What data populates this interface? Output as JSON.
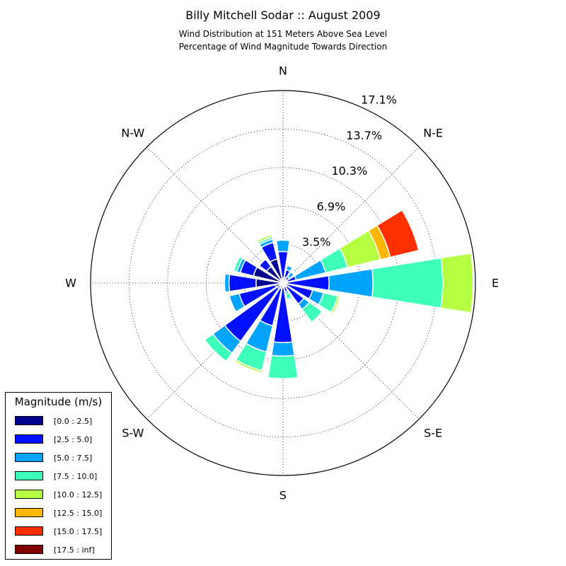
{
  "title": "Billy Mitchell Sodar :: August 2009",
  "subtitle_lines": [
    "Wind Distribution at 151 Meters Above Sea Level",
    "Percentage of Wind Magnitude Towards Direction"
  ],
  "legend": {
    "title": "Magnitude (m/s)",
    "entries": [
      {
        "label": "[0.0 : 2.5]",
        "color": "#00008f"
      },
      {
        "label": "[2.5 : 5.0]",
        "color": "#0010ff"
      },
      {
        "label": "[5.0 : 7.5]",
        "color": "#00a4ff"
      },
      {
        "label": "[7.5 : 10.0]",
        "color": "#3dffb9"
      },
      {
        "label": "[10.0 : 12.5]",
        "color": "#b4ff42"
      },
      {
        "label": "[12.5 : 15.0]",
        "color": "#ffb700"
      },
      {
        "label": "[15.0 : 17.5]",
        "color": "#ff3000"
      },
      {
        "label": "[17.5 : inf]",
        "color": "#800000"
      }
    ]
  },
  "chart_data": {
    "type": "polar-stacked-bar",
    "title": "Billy Mitchell Sodar :: August 2009",
    "subtitle": "Wind Distribution at 151 Meters Above Sea Level / Percentage of Wind Magnitude Towards Direction",
    "direction_labels": [
      "N",
      "N-E",
      "E",
      "S-E",
      "S",
      "S-W",
      "W",
      "N-W"
    ],
    "radial_tick_labels": [
      "3.5%",
      "6.9%",
      "10.3%",
      "13.7%",
      "17.1%"
    ],
    "radial_ticks": [
      3.42,
      6.84,
      10.26,
      13.68,
      17.1
    ],
    "rmax": 17.1,
    "unit": "%",
    "bin_width_deg": 22.5,
    "bins": [
      "[0.0 : 2.5]",
      "[2.5 : 5.0]",
      "[5.0 : 7.5]",
      "[7.5 : 10.0]",
      "[10.0 : 12.5]",
      "[12.5 : 15.0]",
      "[15.0 : 17.5]",
      "[17.5 : inf]"
    ],
    "directions_deg": [
      0,
      22.5,
      45,
      67.5,
      90,
      112.5,
      135,
      157.5,
      180,
      202.5,
      225,
      247.5,
      270,
      292.5,
      315,
      337.5
    ],
    "cumulative": [
      [
        0.4,
        2.8,
        3.8,
        3.8,
        3.8,
        3.8,
        3.8,
        3.8
      ],
      [
        0.5,
        1.2,
        1.6,
        1.7,
        1.7,
        1.7,
        1.7,
        1.7
      ],
      [
        0.35,
        0.7,
        1.2,
        1.3,
        1.3,
        1.3,
        1.3,
        1.3
      ],
      [
        0.4,
        1.2,
        3.9,
        5.9,
        8.9,
        9.8,
        12.4,
        12.4
      ],
      [
        0.4,
        4.1,
        8.0,
        14.2,
        16.9,
        16.9,
        17.0,
        17.0
      ],
      [
        0.3,
        2.7,
        3.7,
        5.0,
        5.2,
        5.2,
        5.2,
        5.2
      ],
      [
        0.4,
        2.3,
        2.9,
        4.3,
        4.4,
        4.5,
        4.5,
        4.5
      ],
      [
        0.3,
        0.8,
        1.0,
        1.5,
        1.6,
        1.6,
        1.6,
        1.6
      ],
      [
        0.4,
        5.3,
        6.5,
        8.5,
        8.5,
        8.5,
        8.5,
        8.5
      ],
      [
        0.5,
        3.9,
        6.3,
        8.0,
        8.2,
        8.2,
        8.2,
        8.2
      ],
      [
        0.6,
        6.4,
        7.7,
        8.6,
        8.6,
        8.6,
        8.6,
        8.6
      ],
      [
        0.7,
        4.0,
        4.9,
        5.0,
        5.0,
        5.0,
        5.0,
        5.0
      ],
      [
        2.4,
        4.8,
        5.2,
        5.2,
        5.2,
        5.2,
        5.2,
        5.2
      ],
      [
        2.7,
        3.9,
        4.2,
        4.5,
        4.5,
        4.5,
        4.5,
        4.5
      ],
      [
        1.8,
        2.6,
        2.6,
        2.6,
        2.6,
        2.6,
        2.6,
        2.6
      ],
      [
        2.2,
        3.7,
        4.0,
        4.2,
        4.4,
        4.4,
        4.4,
        4.4
      ]
    ]
  }
}
